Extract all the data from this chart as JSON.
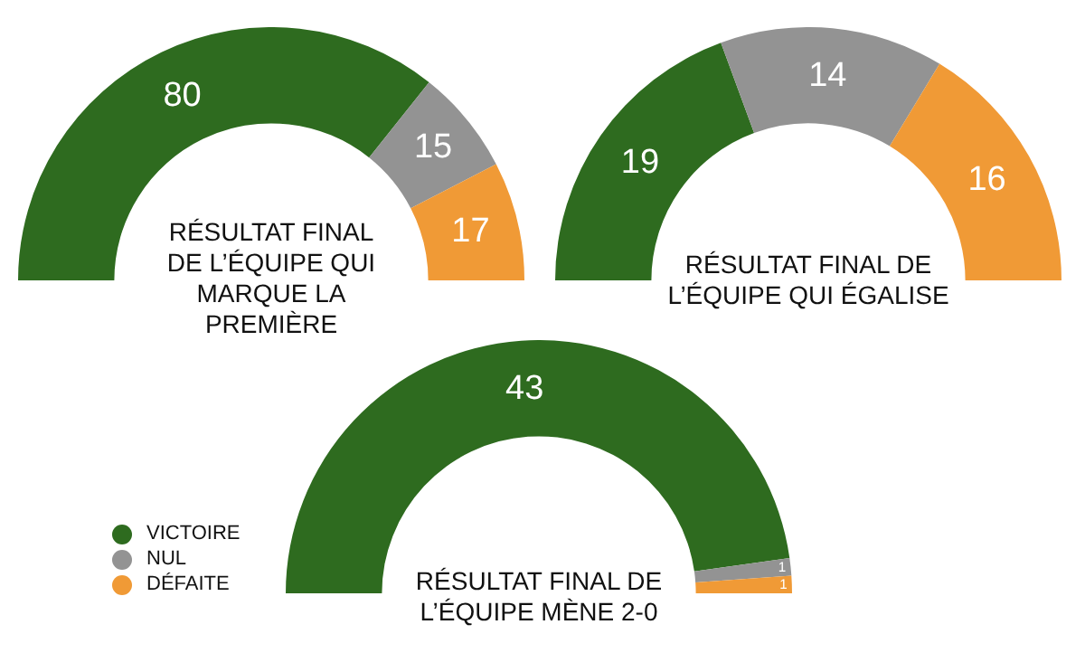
{
  "chart_data": [
    {
      "type": "donut",
      "title": "RÉSULTAT FINAL DE L’ÉQUIPE QUI MARQUE LA PREMIÈRE",
      "categories": [
        null,
        null,
        null
      ],
      "values": [
        80,
        15,
        17
      ],
      "colors": [
        "#2e6b1f",
        "#939393",
        "#f09a36"
      ],
      "data_labels": true
    },
    {
      "type": "donut",
      "title": "RÉSULTAT FINAL DE L’ÉQUIPE QUI ÉGALISE",
      "categories": [
        null,
        null,
        null
      ],
      "values": [
        19,
        14,
        16
      ],
      "colors": [
        "#2e6b1f",
        "#939393",
        "#f09a36"
      ],
      "data_labels": true
    },
    {
      "type": "donut",
      "title": "RÉSULTAT FINAL DE L’ÉQUIPE MÈNE 2-0",
      "categories": [
        "VICTOIRE",
        "NUL",
        "DÉFAITE"
      ],
      "values": [
        43,
        1,
        1
      ],
      "colors": [
        "#2e6b1f",
        "#939393",
        "#f09a36"
      ],
      "data_labels": true,
      "legend": "left"
    }
  ]
}
